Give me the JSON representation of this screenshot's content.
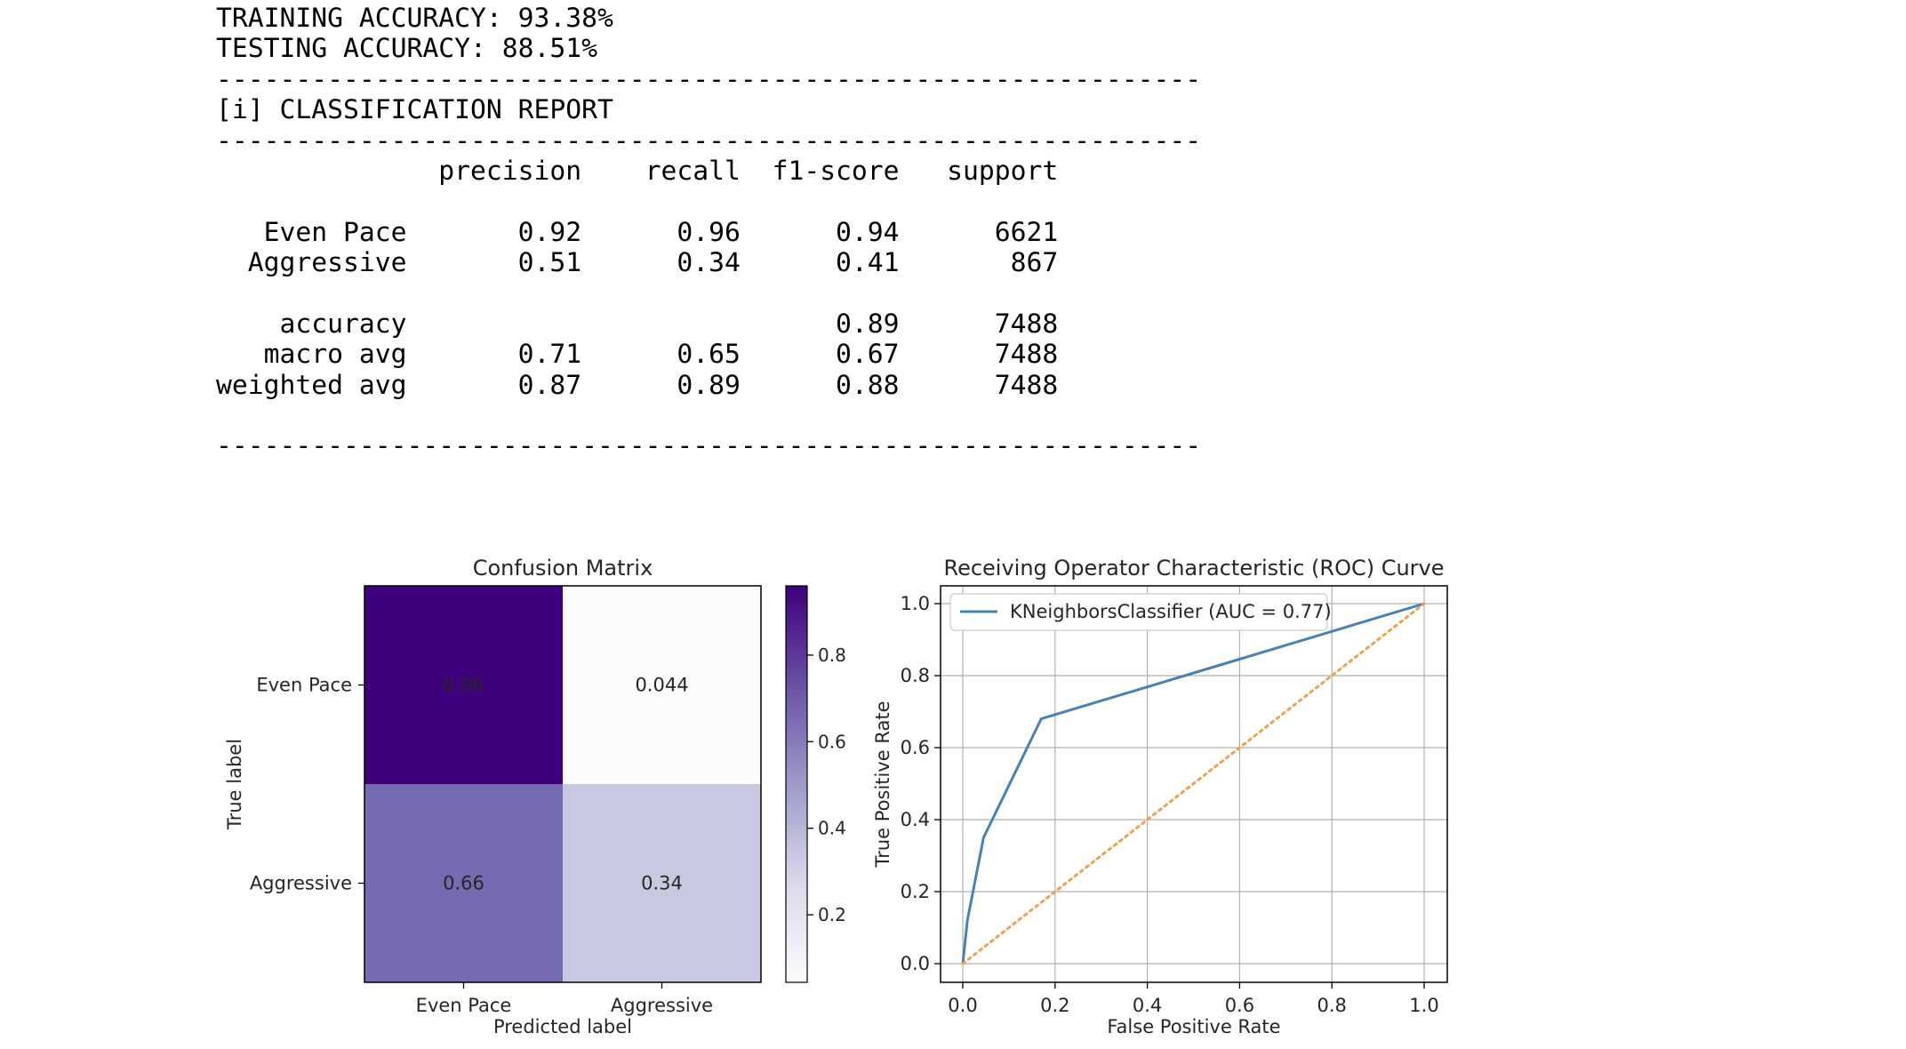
{
  "report": {
    "training": "TRAINING ACCURACY: 93.38%",
    "testing": "TESTING ACCURACY: 88.51%",
    "rule": "--------------------------------------------------------------",
    "heading": "[i] CLASSIFICATION REPORT",
    "header_row": "              precision    recall  f1-score   support",
    "rows": [
      "   Even Pace       0.92      0.96      0.94      6621",
      "  Aggressive       0.51      0.34      0.41       867",
      "    accuracy                           0.89      7488",
      "   macro avg       0.71      0.65      0.67      7488",
      "weighted avg       0.87      0.89      0.88      7488"
    ]
  },
  "chart_data": [
    {
      "type": "heatmap",
      "title": "Confusion Matrix",
      "xlabel": "Predicted label",
      "ylabel": "True label",
      "x_categories": [
        "Even Pace",
        "Aggressive"
      ],
      "y_categories": [
        "Even Pace",
        "Aggressive"
      ],
      "values": [
        [
          0.96,
          0.044
        ],
        [
          0.66,
          0.34
        ]
      ],
      "value_labels": [
        [
          "0.96",
          "0.044"
        ],
        [
          "0.66",
          "0.34"
        ]
      ],
      "colormap": "Purples",
      "cell_colors": [
        [
          "#3f007d",
          "#fcfbfd"
        ],
        [
          "#756bb1",
          "#c9c8e2"
        ]
      ],
      "text_colors": [
        [
          "#ffffff",
          "#3f007d"
        ],
        [
          "#ffffff",
          "#3f007d"
        ]
      ],
      "colorbar": {
        "range": [
          0.044,
          0.96
        ],
        "ticks": [
          0.2,
          0.4,
          0.6,
          0.8
        ],
        "tick_labels": [
          "0.2",
          "0.4",
          "0.6",
          "0.8"
        ]
      }
    },
    {
      "type": "line",
      "title": "Receiving Operator Characteristic (ROC) Curve",
      "xlabel": "False Positive Rate",
      "ylabel": "True Positive Rate",
      "xlim": [
        0.0,
        1.0
      ],
      "ylim": [
        0.0,
        1.0
      ],
      "xticks": [
        "0.0",
        "0.2",
        "0.4",
        "0.6",
        "0.8",
        "1.0"
      ],
      "yticks": [
        "0.0",
        "0.2",
        "0.4",
        "0.6",
        "0.8",
        "1.0"
      ],
      "grid": true,
      "legend_position": "upper-left",
      "series": [
        {
          "name": "KNeighborsClassifier (AUC = 0.77)",
          "color": "#4682b4",
          "style": "solid",
          "x": [
            0.0,
            0.01,
            0.045,
            0.17,
            1.0
          ],
          "y": [
            0.0,
            0.12,
            0.35,
            0.68,
            1.0
          ]
        },
        {
          "color": "#f0a050",
          "style": "dotted",
          "x": [
            0.0,
            1.0
          ],
          "y": [
            0.0,
            1.0
          ]
        }
      ]
    }
  ]
}
